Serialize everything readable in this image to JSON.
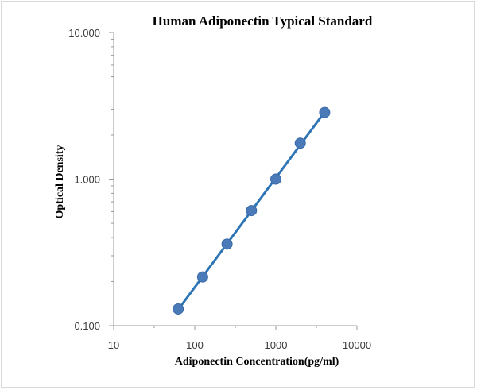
{
  "chart_data": {
    "type": "scatter",
    "title": "Human Adiponectin Typical Standard",
    "xlabel": "Adiponectin Concentration(pg/ml)",
    "ylabel": "Optical Density",
    "xscale": "log",
    "yscale": "log",
    "xlim": [
      10,
      10000
    ],
    "ylim": [
      0.1,
      10
    ],
    "x_ticks": [
      "10",
      "100",
      "1000",
      "10000"
    ],
    "y_ticks": [
      "0.100",
      "1.000",
      "10.000"
    ],
    "grid": false,
    "legend": "none",
    "series": [
      {
        "x": [
          62.5,
          125,
          250,
          500,
          1000,
          2000,
          4000
        ],
        "y": [
          0.13,
          0.215,
          0.36,
          0.61,
          1.0,
          1.76,
          2.85
        ],
        "marker_color": "#4a7ab8",
        "line_color": "#2e75b6",
        "trendline": true
      }
    ]
  }
}
